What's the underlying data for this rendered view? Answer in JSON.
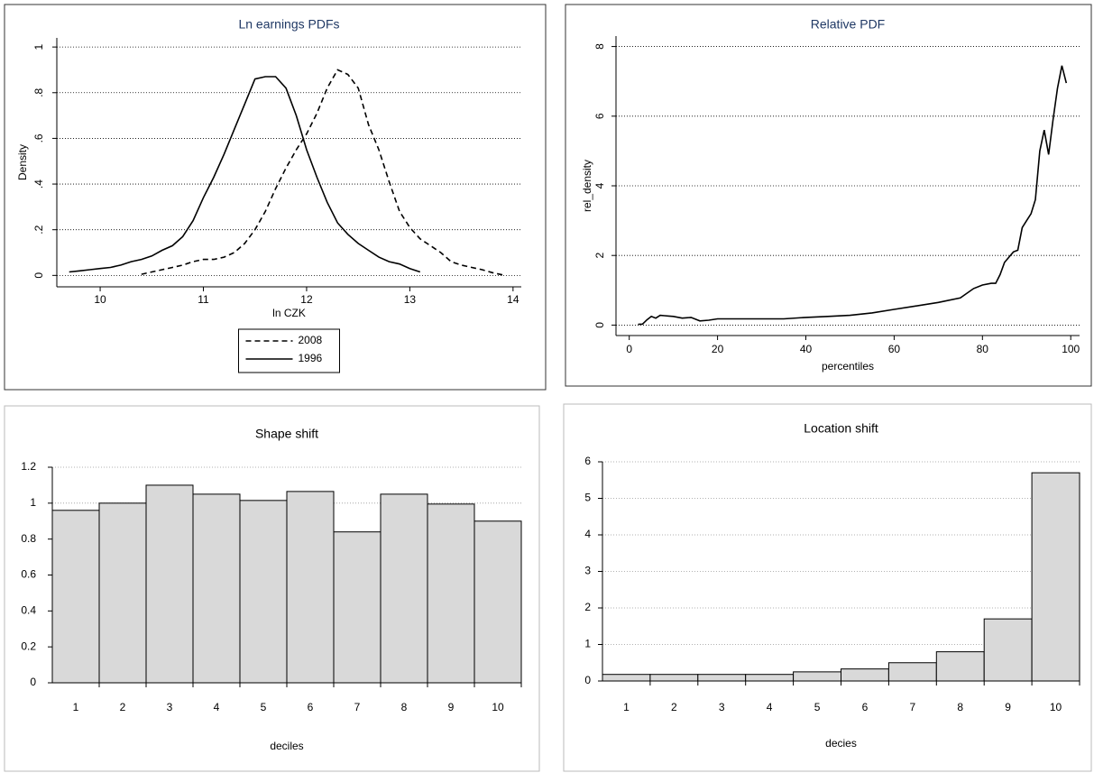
{
  "chart_data": [
    {
      "type": "line",
      "title": "Ln earnings PDFs",
      "x_label": "ln CZK",
      "y_label": "Density",
      "x": [
        9.7,
        9.8,
        9.9,
        10.0,
        10.1,
        10.2,
        10.3,
        10.4,
        10.5,
        10.6,
        10.7,
        10.8,
        10.9,
        11.0,
        11.1,
        11.2,
        11.3,
        11.4,
        11.5,
        11.6,
        11.7,
        11.8,
        11.9,
        12.0,
        12.1,
        12.2,
        12.3,
        12.4,
        12.5,
        12.6,
        12.7,
        12.8,
        12.9,
        13.0,
        13.1,
        13.2,
        13.3,
        13.4,
        13.5,
        13.6,
        13.7,
        13.8,
        13.9
      ],
      "series": [
        {
          "name": "2008",
          "color": "#000000",
          "style": "dashed",
          "values": [
            null,
            null,
            null,
            null,
            null,
            null,
            null,
            0.005,
            0.015,
            0.025,
            0.035,
            0.045,
            0.06,
            0.07,
            0.07,
            0.08,
            0.1,
            0.14,
            0.2,
            0.28,
            0.38,
            0.47,
            0.55,
            0.62,
            0.71,
            0.82,
            0.9,
            0.88,
            0.82,
            0.66,
            0.55,
            0.41,
            0.28,
            0.21,
            0.16,
            0.13,
            0.1,
            0.06,
            0.045,
            0.035,
            0.025,
            0.012,
            0.002
          ]
        },
        {
          "name": "1996",
          "color": "#000000",
          "style": "solid",
          "values": [
            0.015,
            0.02,
            0.025,
            0.03,
            0.035,
            0.045,
            0.06,
            0.07,
            0.085,
            0.11,
            0.13,
            0.17,
            0.24,
            0.34,
            0.43,
            0.53,
            0.64,
            0.75,
            0.86,
            0.87,
            0.87,
            0.82,
            0.7,
            0.55,
            0.43,
            0.32,
            0.23,
            0.18,
            0.14,
            0.11,
            0.08,
            0.06,
            0.05,
            0.03,
            0.015,
            null,
            null,
            null,
            null,
            null,
            null,
            null,
            null
          ]
        }
      ],
      "xlim": [
        9.58,
        14.08
      ],
      "xticks": [
        10,
        11,
        12,
        13,
        14
      ],
      "ylim": [
        -0.05,
        1.04
      ],
      "yticks": [
        0,
        {
          "value": 0.2,
          "label": ".2"
        },
        {
          "value": 0.4,
          "label": ".4"
        },
        {
          "value": 0.6,
          "label": ".6"
        },
        {
          "value": 0.8,
          "label": ".8"
        },
        1
      ],
      "grid": true,
      "legend": "bottom"
    },
    {
      "type": "line",
      "title": "Relative PDF",
      "x_label": "percentiles",
      "y_label": "rel_density",
      "x": [
        2,
        3,
        4,
        5,
        6,
        7,
        8,
        9,
        10,
        12,
        14,
        16,
        18,
        20,
        25,
        30,
        35,
        40,
        45,
        50,
        55,
        60,
        65,
        70,
        75,
        78,
        80,
        82,
        83,
        84,
        85,
        86,
        87,
        88,
        89,
        90,
        91,
        92,
        93,
        94,
        95,
        96,
        97,
        98,
        99
      ],
      "series": [
        {
          "name": "rel_density",
          "color": "#000000",
          "style": "solid",
          "values": [
            0.02,
            0.03,
            0.15,
            0.25,
            0.2,
            0.28,
            0.27,
            0.26,
            0.25,
            0.2,
            0.22,
            0.12,
            0.14,
            0.18,
            0.18,
            0.18,
            0.18,
            0.22,
            0.25,
            0.28,
            0.35,
            0.45,
            0.55,
            0.65,
            0.78,
            1.05,
            1.15,
            1.2,
            1.2,
            1.45,
            1.8,
            1.95,
            2.1,
            2.15,
            2.8,
            3.0,
            3.2,
            3.6,
            5.0,
            5.6,
            4.9,
            5.9,
            6.8,
            7.45,
            6.95
          ]
        }
      ],
      "xlim": [
        -3,
        102
      ],
      "xticks": [
        0,
        20,
        40,
        60,
        80,
        100
      ],
      "ylim": [
        -0.3,
        8.3
      ],
      "yticks": [
        0,
        2,
        4,
        6,
        8
      ],
      "grid": true
    },
    {
      "type": "bar",
      "title": "Shape shift",
      "x_label": "deciles",
      "categories": [
        "1",
        "2",
        "3",
        "4",
        "5",
        "6",
        "7",
        "8",
        "9",
        "10"
      ],
      "values": [
        0.96,
        1.0,
        1.1,
        1.05,
        1.015,
        1.065,
        0.84,
        1.05,
        0.995,
        0.9
      ],
      "color": "#d9d9d9",
      "ylim": [
        0,
        1.2
      ],
      "yticks": [
        0,
        0.2,
        0.4,
        0.6,
        0.8,
        1,
        1.2
      ],
      "grid": true
    },
    {
      "type": "bar",
      "title": "Location shift",
      "x_label": "decies",
      "categories": [
        "1",
        "2",
        "3",
        "4",
        "5",
        "6",
        "7",
        "8",
        "9",
        "10"
      ],
      "values": [
        0.18,
        0.18,
        0.18,
        0.18,
        0.25,
        0.33,
        0.5,
        0.8,
        1.7,
        5.7
      ],
      "color": "#d9d9d9",
      "ylim": [
        0,
        6
      ],
      "yticks": [
        0,
        1,
        2,
        3,
        4,
        5,
        6
      ],
      "grid": true
    }
  ]
}
